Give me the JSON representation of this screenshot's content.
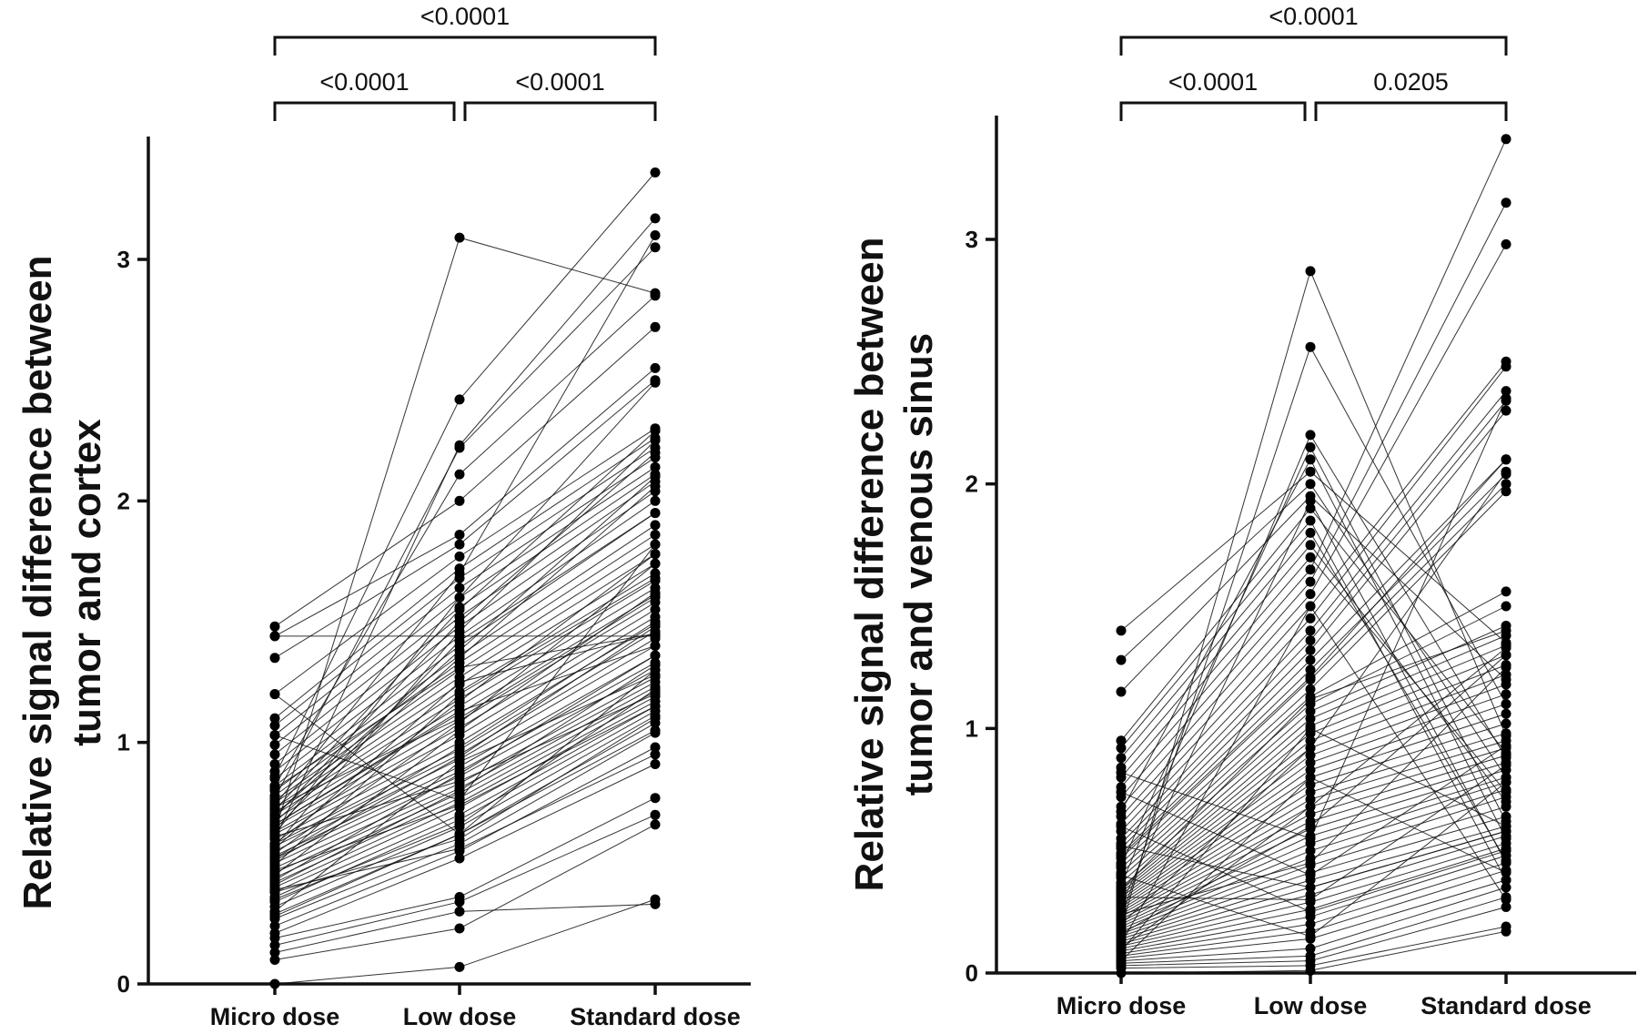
{
  "chart_data": [
    {
      "type": "scatter",
      "subtype": "paired dot plot",
      "ylabel": "Relative signal difference between tumor and cortex",
      "ylabel_lines": [
        "Relative signal difference between",
        "tumor and cortex"
      ],
      "categories": [
        "Micro dose",
        "Low dose",
        "Standard dose"
      ],
      "ylim": [
        0,
        3.5
      ],
      "yticks": [
        0,
        1,
        2,
        3
      ],
      "grid": false,
      "comparisons": [
        {
          "from": "Micro dose",
          "to": "Low dose",
          "p": "<0.0001"
        },
        {
          "from": "Low dose",
          "to": "Standard dose",
          "p": "<0.0001"
        },
        {
          "from": "Micro dose",
          "to": "Standard dose",
          "p": "<0.0001"
        }
      ],
      "pairs": [
        [
          0.0,
          0.07,
          0.35
        ],
        [
          0.1,
          0.23,
          0.66
        ],
        [
          0.13,
          0.3,
          0.33
        ],
        [
          0.16,
          0.34,
          0.7
        ],
        [
          0.19,
          0.36,
          0.77
        ],
        [
          0.21,
          0.52,
          0.91
        ],
        [
          0.24,
          0.55,
          0.98
        ],
        [
          0.27,
          0.58,
          1.04
        ],
        [
          0.29,
          0.62,
          1.08
        ],
        [
          0.32,
          0.65,
          1.11
        ],
        [
          0.34,
          0.68,
          1.13
        ],
        [
          0.36,
          0.7,
          1.15
        ],
        [
          0.38,
          0.73,
          1.17
        ],
        [
          0.4,
          0.75,
          1.19
        ],
        [
          0.42,
          0.77,
          1.21
        ],
        [
          0.44,
          0.79,
          1.23
        ],
        [
          0.46,
          0.81,
          1.25
        ],
        [
          0.48,
          0.83,
          1.27
        ],
        [
          0.5,
          0.86,
          1.3
        ],
        [
          0.52,
          0.88,
          1.33
        ],
        [
          0.53,
          0.9,
          1.36
        ],
        [
          0.55,
          0.93,
          1.4
        ],
        [
          0.57,
          0.95,
          1.43
        ],
        [
          0.58,
          0.97,
          1.46
        ],
        [
          0.6,
          1.0,
          1.49
        ],
        [
          0.62,
          1.03,
          1.52
        ],
        [
          0.63,
          1.06,
          1.55
        ],
        [
          0.65,
          1.09,
          1.58
        ],
        [
          0.66,
          1.12,
          1.61
        ],
        [
          0.68,
          1.15,
          1.64
        ],
        [
          0.7,
          1.18,
          1.67
        ],
        [
          0.71,
          1.21,
          1.7
        ],
        [
          0.73,
          1.24,
          1.74
        ],
        [
          0.75,
          1.27,
          1.78
        ],
        [
          0.76,
          1.3,
          1.82
        ],
        [
          0.78,
          1.33,
          1.86
        ],
        [
          0.8,
          1.36,
          1.9
        ],
        [
          0.82,
          1.4,
          1.95
        ],
        [
          0.85,
          1.44,
          2.0
        ],
        [
          0.88,
          1.48,
          2.04
        ],
        [
          0.91,
          1.52,
          2.08
        ],
        [
          0.95,
          1.56,
          2.11
        ],
        [
          0.99,
          1.6,
          2.14
        ],
        [
          1.03,
          1.64,
          2.18
        ],
        [
          1.07,
          1.68,
          2.22
        ],
        [
          1.1,
          1.72,
          2.26
        ],
        [
          1.2,
          1.77,
          2.3
        ],
        [
          1.35,
          1.82,
          2.5
        ],
        [
          1.44,
          1.86,
          2.55
        ],
        [
          1.48,
          2.0,
          2.72
        ],
        [
          0.56,
          1.25,
          1.45
        ],
        [
          0.61,
          0.84,
          1.2
        ],
        [
          0.45,
          1.05,
          1.62
        ],
        [
          0.38,
          0.6,
          1.1
        ],
        [
          0.67,
          1.35,
          2.06
        ],
        [
          0.52,
          0.98,
          1.5
        ],
        [
          0.3,
          0.92,
          1.28
        ],
        [
          0.72,
          1.55,
          2.29
        ],
        [
          0.82,
          2.11,
          2.85
        ],
        [
          0.58,
          1.17,
          1.78
        ],
        [
          0.47,
          0.74,
          1.15
        ],
        [
          0.64,
          1.42,
          1.95
        ],
        [
          0.35,
          0.66,
          1.22
        ],
        [
          0.69,
          1.5,
          2.2
        ],
        [
          0.77,
          2.22,
          3.05
        ],
        [
          0.43,
          0.87,
          1.36
        ],
        [
          0.54,
          1.08,
          1.74
        ],
        [
          0.62,
          1.6,
          2.49
        ],
        [
          0.41,
          0.8,
          1.32
        ],
        [
          0.74,
          1.7,
          3.1
        ],
        [
          0.6,
          2.23,
          3.17
        ],
        [
          0.86,
          2.42,
          3.36
        ],
        [
          0.49,
          1.2,
          1.68
        ],
        [
          0.57,
          1.46,
          2.25
        ],
        [
          0.66,
          1.13,
          1.4
        ],
        [
          0.39,
          0.56,
          0.95
        ],
        [
          0.7,
          1.38,
          2.1
        ],
        [
          0.51,
          0.94,
          1.48
        ],
        [
          0.28,
          0.62,
          1.05
        ],
        [
          0.63,
          3.09,
          2.86
        ],
        [
          1.44,
          1.44,
          1.44
        ],
        [
          1.2,
          0.62,
          1.3
        ],
        [
          1.03,
          0.76,
          1.82
        ],
        [
          0.81,
          1.31,
          1.45
        ],
        [
          0.73,
          1.1,
          1.6
        ]
      ]
    },
    {
      "type": "scatter",
      "subtype": "paired dot plot",
      "ylabel": "Relative signal difference between tumor and venous sinus",
      "ylabel_lines": [
        "Relative signal difference between",
        "tumor and venous sinus"
      ],
      "categories": [
        "Micro dose",
        "Low dose",
        "Standard dose"
      ],
      "ylim": [
        0,
        3.5
      ],
      "yticks": [
        0,
        1,
        2,
        3
      ],
      "grid": false,
      "comparisons": [
        {
          "from": "Micro dose",
          "to": "Low dose",
          "p": "<0.0001"
        },
        {
          "from": "Low dose",
          "to": "Standard dose",
          "p": "0.0205"
        },
        {
          "from": "Micro dose",
          "to": "Standard dose",
          "p": "<0.0001"
        }
      ],
      "pairs": [
        [
          0.0,
          0.01,
          0.17
        ],
        [
          0.02,
          0.03,
          0.19
        ],
        [
          0.03,
          0.05,
          0.27
        ],
        [
          0.04,
          0.07,
          0.31
        ],
        [
          0.05,
          0.1,
          0.35
        ],
        [
          0.06,
          0.14,
          0.38
        ],
        [
          0.07,
          0.17,
          0.42
        ],
        [
          0.08,
          0.2,
          0.45
        ],
        [
          0.09,
          0.23,
          0.48
        ],
        [
          0.1,
          0.26,
          0.51
        ],
        [
          0.11,
          0.29,
          0.53
        ],
        [
          0.12,
          0.32,
          0.56
        ],
        [
          0.13,
          0.35,
          0.58
        ],
        [
          0.14,
          0.38,
          0.6
        ],
        [
          0.15,
          0.41,
          0.64
        ],
        [
          0.16,
          0.44,
          0.68
        ],
        [
          0.17,
          0.47,
          0.72
        ],
        [
          0.18,
          0.5,
          0.75
        ],
        [
          0.19,
          0.53,
          0.78
        ],
        [
          0.2,
          0.56,
          0.8
        ],
        [
          0.21,
          0.59,
          0.83
        ],
        [
          0.22,
          0.62,
          0.86
        ],
        [
          0.23,
          0.65,
          0.89
        ],
        [
          0.24,
          0.68,
          0.92
        ],
        [
          0.25,
          0.71,
          0.95
        ],
        [
          0.26,
          0.74,
          0.98
        ],
        [
          0.27,
          0.77,
          1.02
        ],
        [
          0.28,
          0.8,
          1.06
        ],
        [
          0.29,
          0.83,
          1.1
        ],
        [
          0.3,
          0.86,
          1.14
        ],
        [
          0.31,
          0.89,
          1.18
        ],
        [
          0.32,
          0.92,
          1.22
        ],
        [
          0.33,
          0.95,
          1.26
        ],
        [
          0.34,
          0.98,
          1.3
        ],
        [
          0.35,
          1.01,
          1.34
        ],
        [
          0.37,
          1.04,
          1.38
        ],
        [
          0.39,
          1.07,
          1.42
        ],
        [
          0.41,
          1.1,
          1.5
        ],
        [
          0.43,
          1.13,
          1.56
        ],
        [
          0.45,
          1.16,
          1.97
        ],
        [
          0.47,
          1.2,
          2.0
        ],
        [
          0.49,
          1.24,
          2.04
        ],
        [
          0.51,
          1.28,
          2.1
        ],
        [
          0.53,
          1.32,
          2.3
        ],
        [
          0.55,
          1.36,
          2.34
        ],
        [
          0.58,
          1.4,
          2.38
        ],
        [
          0.61,
          1.45,
          2.48
        ],
        [
          0.64,
          1.5,
          2.5
        ],
        [
          0.68,
          1.55,
          2.98
        ],
        [
          0.72,
          1.6,
          3.15
        ],
        [
          0.76,
          1.65,
          3.41
        ],
        [
          0.8,
          1.7,
          0.74
        ],
        [
          0.84,
          1.75,
          0.7
        ],
        [
          0.88,
          1.8,
          0.46
        ],
        [
          0.92,
          1.85,
          0.38
        ],
        [
          0.95,
          1.9,
          0.9
        ],
        [
          1.15,
          1.95,
          1.2
        ],
        [
          1.28,
          2.0,
          0.8
        ],
        [
          1.4,
          2.05,
          1.35
        ],
        [
          0.66,
          2.1,
          0.55
        ],
        [
          0.44,
          2.15,
          0.62
        ],
        [
          0.36,
          2.2,
          0.88
        ],
        [
          0.22,
          2.56,
          1.1
        ],
        [
          0.18,
          2.87,
          0.97
        ],
        [
          0.28,
          1.93,
          0.45
        ],
        [
          0.12,
          1.5,
          0.3
        ],
        [
          0.09,
          1.0,
          0.6
        ],
        [
          0.05,
          0.8,
          0.41
        ],
        [
          0.16,
          0.6,
          1.3
        ],
        [
          0.24,
          0.45,
          1.25
        ],
        [
          0.31,
          0.3,
          0.85
        ],
        [
          0.4,
          0.15,
          0.78
        ],
        [
          0.52,
          0.35,
          0.58
        ],
        [
          0.6,
          0.25,
          0.5
        ],
        [
          0.74,
          0.4,
          0.93
        ],
        [
          0.82,
          0.55,
          2.35
        ],
        [
          0.1,
          0.68,
          1.33
        ],
        [
          0.2,
          0.92,
          2.05
        ],
        [
          0.34,
          1.12,
          1.4
        ],
        [
          0.48,
          1.21,
          2.1
        ]
      ]
    }
  ]
}
